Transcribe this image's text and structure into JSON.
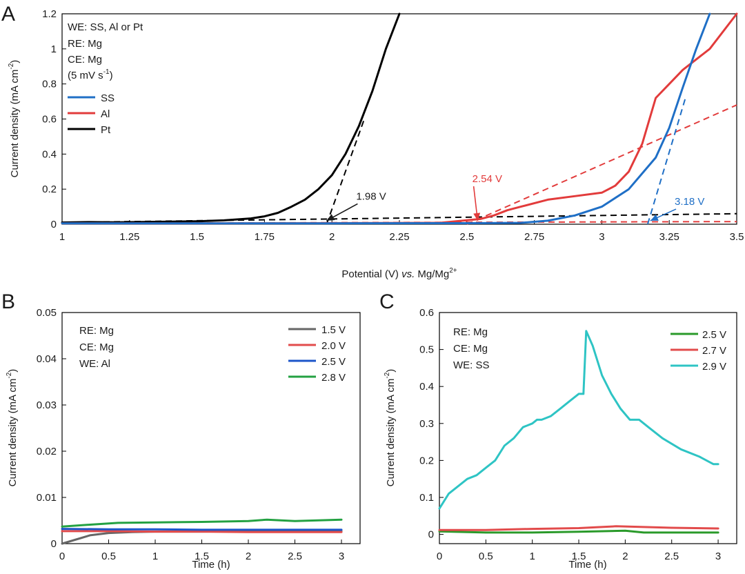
{
  "colors": {
    "ss": "#1f6fc6",
    "al": "#e23b3b",
    "pt": "#000000",
    "blue": "#1c55c9",
    "green": "#23a142",
    "gray": "#666666",
    "cyan": "#2ec4c4",
    "red_c": "#e24b4b",
    "green_c": "#2a9a2a"
  },
  "chart_data": [
    {
      "panel": "A",
      "type": "line",
      "xlabel_prefix": "Potential (V) ",
      "xlabel_italic": "vs.",
      "xlabel_suffix": " Mg/Mg",
      "xlabel_sup": "2+",
      "ylabel": "Current density (mA cm",
      "ylabel_sup": "-2",
      "ylabel_end": ")",
      "xlim": [
        1,
        3.5
      ],
      "ylim": [
        0,
        1.2
      ],
      "xticks": [
        "1",
        "1.25",
        "1.5",
        "1.75",
        "2",
        "2.25",
        "2.5",
        "2.75",
        "3",
        "3.25",
        "3.5"
      ],
      "yticks": [
        "0",
        "0.2",
        "0.4",
        "0.6",
        "0.8",
        "1",
        "1.2"
      ],
      "info": [
        "WE: SS, Al or Pt",
        "RE: Mg",
        "CE: Mg"
      ],
      "scan_rate_prefix": "(5 mV s",
      "scan_rate_sup": "-1",
      "scan_rate_suffix": ")",
      "legend": [
        "SS",
        "Al",
        "Pt"
      ],
      "series": [
        {
          "name": "Pt",
          "color": "#000000",
          "x": [
            1.0,
            1.1,
            1.2,
            1.3,
            1.4,
            1.5,
            1.6,
            1.7,
            1.75,
            1.8,
            1.85,
            1.9,
            1.95,
            2.0,
            2.05,
            2.1,
            2.15,
            2.2,
            2.25
          ],
          "y": [
            0.01,
            0.012,
            0.011,
            0.013,
            0.015,
            0.017,
            0.022,
            0.033,
            0.045,
            0.065,
            0.1,
            0.14,
            0.2,
            0.28,
            0.4,
            0.56,
            0.76,
            1.0,
            1.2
          ]
        },
        {
          "name": "Al",
          "color": "#e23b3b",
          "x": [
            1.0,
            1.5,
            2.0,
            2.4,
            2.55,
            2.6,
            2.65,
            2.7,
            2.8,
            2.9,
            3.0,
            3.05,
            3.1,
            3.15,
            3.2,
            3.25,
            3.3,
            3.4,
            3.5
          ],
          "y": [
            0.005,
            0.005,
            0.006,
            0.008,
            0.03,
            0.05,
            0.08,
            0.1,
            0.14,
            0.16,
            0.18,
            0.22,
            0.3,
            0.46,
            0.72,
            0.8,
            0.88,
            1.0,
            1.2
          ]
        },
        {
          "name": "SS",
          "color": "#1f6fc6",
          "x": [
            1.0,
            2.0,
            2.5,
            2.7,
            2.8,
            2.9,
            3.0,
            3.1,
            3.2,
            3.25,
            3.3,
            3.35,
            3.4
          ],
          "y": [
            0.005,
            0.005,
            0.006,
            0.008,
            0.02,
            0.05,
            0.1,
            0.2,
            0.38,
            0.55,
            0.78,
            1.0,
            1.2
          ]
        }
      ],
      "tangents": [
        {
          "color": "#000000",
          "x": [
            1.98,
            2.12
          ],
          "y": [
            0.0,
            0.6
          ]
        },
        {
          "color": "#000000",
          "x": [
            1.0,
            3.5
          ],
          "y": [
            0.01,
            0.06
          ]
        },
        {
          "color": "#e23b3b",
          "x": [
            2.5,
            3.5
          ],
          "y": [
            0.0,
            0.68
          ]
        },
        {
          "color": "#e23b3b",
          "x": [
            1.0,
            3.5
          ],
          "y": [
            0.005,
            0.015
          ]
        },
        {
          "color": "#1f6fc6",
          "x": [
            3.17,
            3.31
          ],
          "y": [
            0.0,
            0.72
          ]
        }
      ],
      "annotations": [
        {
          "text": "1.98 V",
          "color": "#1a1a1a",
          "tx": 2.09,
          "ty": 0.14,
          "ax": 1.98,
          "ay": 0.02
        },
        {
          "text": "2.54 V",
          "color": "#e23b3b",
          "tx": 2.52,
          "ty": 0.24,
          "ax": 2.54,
          "ay": 0.02
        },
        {
          "text": "3.18 V",
          "color": "#1f6fc6",
          "tx": 3.27,
          "ty": 0.11,
          "ax": 3.18,
          "ay": 0.02
        }
      ]
    },
    {
      "panel": "B",
      "type": "line",
      "xlabel": "Time (h)",
      "ylabel": "Current density (mA cm",
      "ylabel_sup": "-2",
      "ylabel_end": ")",
      "xlim": [
        0,
        3.2
      ],
      "ylim": [
        0,
        0.05
      ],
      "xticks": [
        "0",
        "0.5",
        "1",
        "1.5",
        "2",
        "2.5",
        "3"
      ],
      "yticks": [
        "0",
        "0.01",
        "0.02",
        "0.03",
        "0.04",
        "0.05"
      ],
      "info": [
        "RE: Mg",
        "CE: Mg",
        "WE: Al"
      ],
      "series": [
        {
          "name": "1.5 V",
          "color": "#666666",
          "x": [
            0,
            0.1,
            0.2,
            0.3,
            0.5,
            0.75,
            1.0,
            1.5,
            2.0,
            2.5,
            3.0
          ],
          "y": [
            0.0,
            0.0006,
            0.0012,
            0.0018,
            0.0023,
            0.0025,
            0.0026,
            0.0026,
            0.0027,
            0.0027,
            0.0027
          ]
        },
        {
          "name": "2.0 V",
          "color": "#e24b4b",
          "x": [
            0,
            0.5,
            1.0,
            1.5,
            2.0,
            2.5,
            3.0
          ],
          "y": [
            0.0027,
            0.0027,
            0.0026,
            0.0026,
            0.0025,
            0.0025,
            0.0025
          ]
        },
        {
          "name": "2.5 V",
          "color": "#1c55c9",
          "x": [
            0,
            0.5,
            1.0,
            1.5,
            2.0,
            2.5,
            3.0
          ],
          "y": [
            0.0032,
            0.0031,
            0.0031,
            0.003,
            0.003,
            0.003,
            0.003
          ]
        },
        {
          "name": "2.8 V",
          "color": "#23a142",
          "x": [
            0,
            0.3,
            0.6,
            1.0,
            1.5,
            2.0,
            2.2,
            2.5,
            3.0
          ],
          "y": [
            0.0037,
            0.0041,
            0.0045,
            0.0046,
            0.0047,
            0.0049,
            0.0052,
            0.0049,
            0.0052
          ]
        }
      ]
    },
    {
      "panel": "C",
      "type": "line",
      "xlabel": "Time (h)",
      "ylabel": "Current density (mA cm",
      "ylabel_sup": "-2",
      "ylabel_end": ")",
      "xlim": [
        0,
        3.2
      ],
      "ylim": [
        -0.025,
        0.6
      ],
      "xticks": [
        "0",
        "0.5",
        "1",
        "1.5",
        "2",
        "2.5",
        "3"
      ],
      "yticks": [
        "0",
        "0.1",
        "0.2",
        "0.3",
        "0.4",
        "0.5",
        "0.6"
      ],
      "info": [
        "RE: Mg",
        "CE: Mg",
        "WE: SS"
      ],
      "series": [
        {
          "name": "2.5 V",
          "color": "#2a9a2a",
          "x": [
            0,
            0.5,
            1.0,
            1.5,
            2.0,
            2.2,
            2.5,
            3.0
          ],
          "y": [
            0.008,
            0.005,
            0.005,
            0.007,
            0.01,
            0.005,
            0.005,
            0.005
          ]
        },
        {
          "name": "2.7 V",
          "color": "#e24b4b",
          "x": [
            0,
            0.5,
            1.0,
            1.5,
            1.9,
            2.2,
            2.5,
            3.0
          ],
          "y": [
            0.012,
            0.012,
            0.015,
            0.017,
            0.022,
            0.02,
            0.018,
            0.016
          ]
        },
        {
          "name": "2.9 V",
          "color": "#2ec4c4",
          "x": [
            0,
            0.1,
            0.2,
            0.3,
            0.4,
            0.5,
            0.6,
            0.7,
            0.8,
            0.9,
            1.0,
            1.05,
            1.1,
            1.2,
            1.3,
            1.4,
            1.5,
            1.55,
            1.58,
            1.65,
            1.75,
            1.85,
            1.95,
            2.05,
            2.15,
            2.25,
            2.4,
            2.6,
            2.8,
            2.95,
            3.0
          ],
          "y": [
            0.07,
            0.11,
            0.13,
            0.15,
            0.16,
            0.18,
            0.2,
            0.24,
            0.26,
            0.29,
            0.3,
            0.31,
            0.31,
            0.32,
            0.34,
            0.36,
            0.38,
            0.38,
            0.55,
            0.51,
            0.43,
            0.38,
            0.34,
            0.31,
            0.31,
            0.29,
            0.26,
            0.23,
            0.21,
            0.19,
            0.19
          ]
        }
      ]
    }
  ]
}
